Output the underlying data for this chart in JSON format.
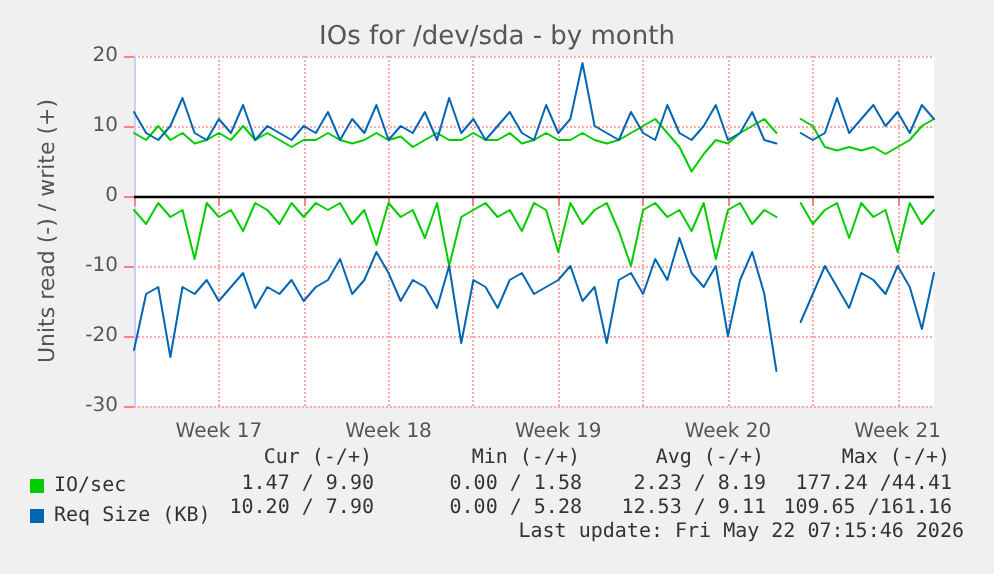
{
  "chart_data": {
    "type": "line",
    "title": "IOs for /dev/sda - by month",
    "ylabel": "Units read (-) / write (+)",
    "categories": [
      null,
      null,
      null,
      null,
      null,
      null,
      null,
      "Week 17",
      null,
      null,
      null,
      null,
      null,
      null,
      null,
      null,
      null,
      null,
      null,
      null,
      null,
      "Week 18",
      null,
      null,
      null,
      null,
      null,
      null,
      null,
      null,
      null,
      null,
      null,
      null,
      null,
      "Week 19",
      null,
      null,
      null,
      null,
      null,
      null,
      null,
      null,
      null,
      null,
      null,
      null,
      null,
      "Week 20",
      null,
      null,
      null,
      null,
      null,
      null,
      null,
      null,
      null,
      null,
      null,
      null,
      null,
      "Week 21",
      null,
      null,
      null
    ],
    "series": [
      {
        "name": "IO/sec",
        "color": "#00cc00",
        "values": [
          9,
          8,
          10,
          8,
          9,
          7.5,
          8,
          9,
          8,
          10,
          8,
          9,
          8,
          7,
          8,
          8,
          9,
          8,
          7.5,
          8,
          9,
          8,
          8.5,
          7,
          8,
          9,
          8,
          8,
          9,
          8,
          8,
          9,
          7.5,
          8,
          9,
          8,
          8,
          9,
          8,
          7.5,
          8,
          9,
          10,
          11,
          9,
          7,
          3.5,
          6,
          8,
          7.5,
          9,
          10,
          11,
          9,
          null,
          11,
          10,
          7,
          6.5,
          7,
          6.5,
          7,
          6,
          7,
          8,
          10,
          11
        ]
      },
      {
        "name": "Req Size (KB)",
        "color": "#0066b3",
        "values": [
          12,
          9,
          8,
          10,
          14,
          9,
          8,
          11,
          9,
          13,
          8,
          10,
          9,
          8,
          10,
          9,
          12,
          8,
          11,
          9,
          13,
          8,
          10,
          9,
          12,
          8,
          14,
          9,
          11,
          8,
          10,
          12,
          9,
          8,
          13,
          9,
          11,
          19,
          10,
          9,
          8,
          12,
          9,
          8,
          13,
          9,
          8,
          10,
          13,
          8,
          9,
          12,
          8,
          7.5,
          null,
          9,
          8,
          9,
          14,
          9,
          11,
          13,
          10,
          12,
          9,
          13,
          11
        ]
      },
      {
        "color": "#00cc00",
        "values": [
          -2,
          -4,
          -1,
          -3,
          -2,
          -9,
          -1,
          -3,
          -2,
          -5,
          -1,
          -2,
          -4,
          -1,
          -3,
          -1,
          -2,
          -1,
          -4,
          -2,
          -7,
          -1,
          -3,
          -2,
          -6,
          -1,
          -10,
          -3,
          -2,
          -1,
          -3,
          -2,
          -5,
          -1,
          -2,
          -8,
          -1,
          -4,
          -2,
          -1,
          -5,
          -10,
          -2,
          -1,
          -3,
          -2,
          -5,
          -1,
          -9,
          -2,
          -1,
          -4,
          -2,
          -3,
          null,
          -1,
          -4,
          -2,
          -1,
          -6,
          -1,
          -3,
          -2,
          -8,
          -1,
          -4,
          -2
        ]
      },
      {
        "color": "#0066b3",
        "values": [
          -22,
          -14,
          -13,
          -23,
          -13,
          -14,
          -12,
          -15,
          -13,
          -11,
          -16,
          -13,
          -14,
          -12,
          -15,
          -13,
          -12,
          -9,
          -14,
          -12,
          -8,
          -11,
          -15,
          -12,
          -13,
          -16,
          -10,
          -21,
          -12,
          -13,
          -16,
          -12,
          -11,
          -14,
          -13,
          -12,
          -10,
          -15,
          -13,
          -21,
          -12,
          -11,
          -14,
          -9,
          -12,
          -6,
          -11,
          -13,
          -10,
          -20,
          -12,
          -8,
          -14,
          -25,
          null,
          -18,
          -14,
          -10,
          -13,
          -16,
          -11,
          -12,
          -14,
          -10,
          -13,
          -19,
          -11
        ]
      }
    ],
    "ylim": [
      -30,
      20
    ],
    "yticks": [
      -30,
      -20,
      -10,
      0,
      10,
      20
    ],
    "ref_lines": [
      {
        "axis": "y",
        "value": 0,
        "color": "#000000"
      }
    ],
    "grid": true,
    "legend": "bottom left",
    "marker": "none",
    "line_style": "solid",
    "annotations": [
      "Cur (-/+)",
      "Min (-/+)",
      "Avg (-/+)",
      "Max (-/+)",
      "1.47 / 9.90",
      "0.00 / 1.58",
      "2.23 / 8.19",
      "177.24 /44.41",
      "10.20 / 7.90",
      "0.00 / 5.28",
      "12.53 / 9.11",
      "109.65 /161.16",
      "Last update: Fri May 22 07:15:46 2026"
    ]
  }
}
